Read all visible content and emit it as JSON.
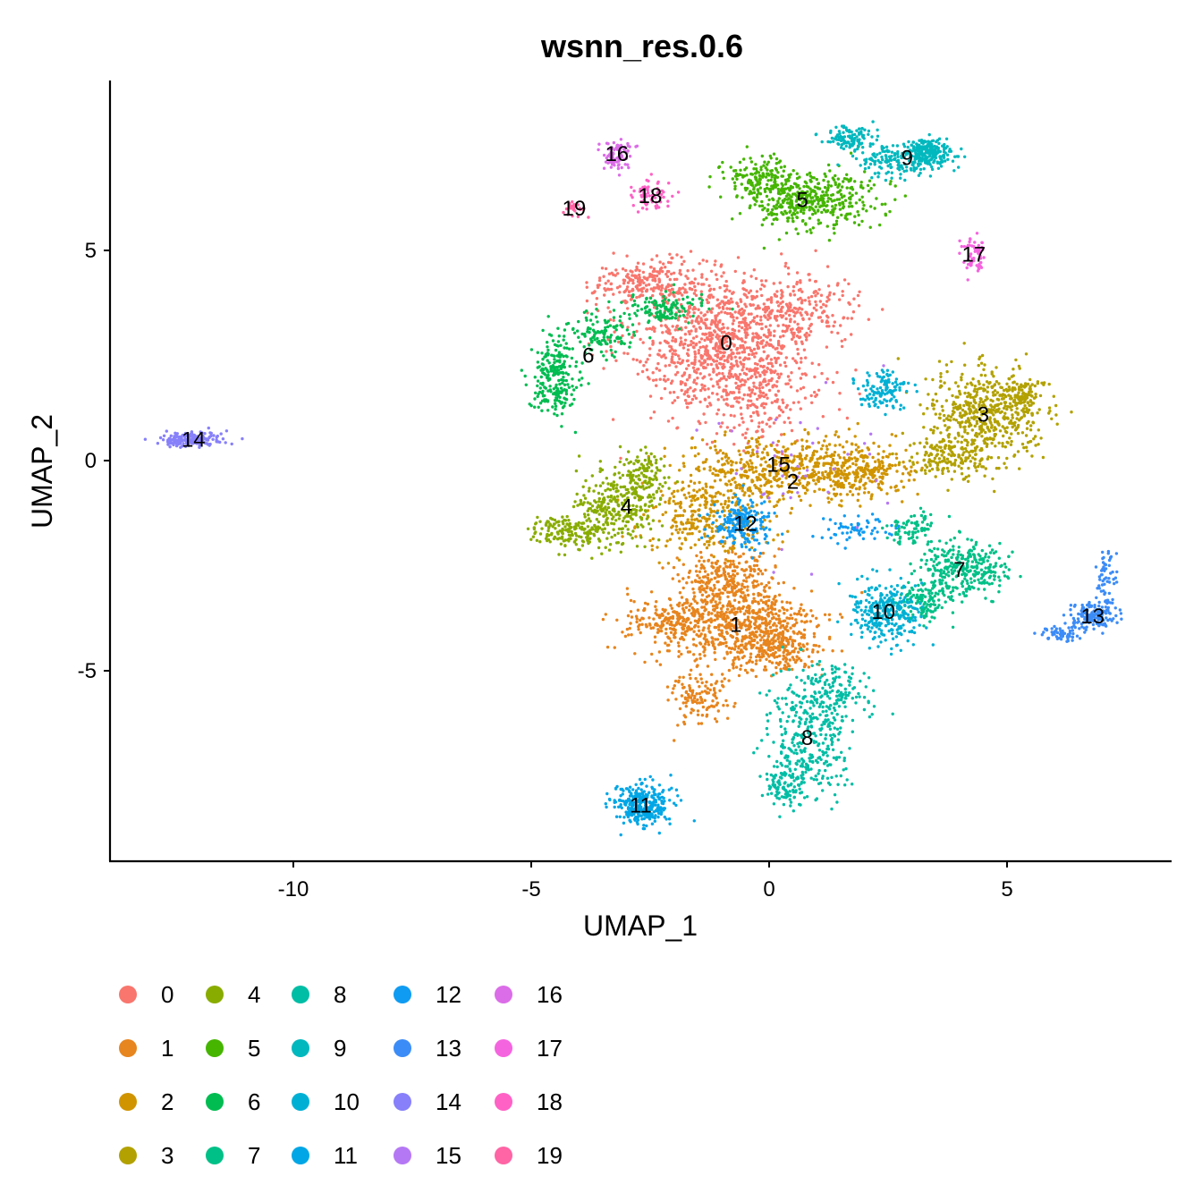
{
  "chart_data": {
    "type": "scatter",
    "title": "wsnn_res.0.6",
    "xlabel": "UMAP_1",
    "ylabel": "UMAP_2",
    "xlim": [
      -14.0,
      8.5
    ],
    "ylim": [
      -9.4,
      9.0
    ],
    "x_ticks": [
      -10,
      -5,
      0,
      5
    ],
    "x_tick_labels": [
      "-10",
      "-5",
      "0",
      "5"
    ],
    "y_ticks": [
      -5,
      0,
      5
    ],
    "y_tick_labels": [
      "-5",
      "0",
      "5"
    ],
    "grid": false,
    "legend_position": "bottom",
    "legend_columns": 5,
    "clusters": [
      {
        "name": "0",
        "color": "#F8766D",
        "label_pos": [
          -0.9,
          2.8
        ],
        "regions": [
          [
            -1.0,
            2.8,
            1.6,
            1.2,
            900
          ],
          [
            -2.5,
            4.2,
            1.0,
            0.5,
            250
          ],
          [
            0.5,
            3.6,
            1.2,
            0.7,
            250
          ],
          [
            -0.3,
            1.4,
            1.2,
            0.8,
            200
          ]
        ]
      },
      {
        "name": "1",
        "color": "#E7851E",
        "label_pos": [
          -0.7,
          -3.9
        ],
        "regions": [
          [
            -0.7,
            -3.9,
            1.4,
            0.9,
            700
          ],
          [
            0.2,
            -4.4,
            0.6,
            0.5,
            200
          ],
          [
            -2.1,
            -3.8,
            0.7,
            0.4,
            150
          ],
          [
            -1.5,
            -5.6,
            0.5,
            0.6,
            120
          ],
          [
            -0.9,
            -2.7,
            0.8,
            0.5,
            200
          ]
        ]
      },
      {
        "name": "2",
        "color": "#D09400",
        "label_pos": [
          0.5,
          -0.5
        ],
        "regions": [
          [
            0.5,
            -0.2,
            1.8,
            0.6,
            600
          ],
          [
            -1.3,
            -1.3,
            1.1,
            0.7,
            300
          ],
          [
            2.0,
            -0.3,
            0.8,
            0.4,
            150
          ]
        ]
      },
      {
        "name": "3",
        "color": "#B2A100",
        "label_pos": [
          4.5,
          1.1
        ],
        "regions": [
          [
            4.5,
            1.1,
            1.0,
            0.9,
            500
          ],
          [
            3.8,
            0.0,
            0.7,
            0.4,
            150
          ],
          [
            5.3,
            1.5,
            0.4,
            0.4,
            120
          ]
        ]
      },
      {
        "name": "4",
        "color": "#89AC00",
        "label_pos": [
          -3.0,
          -1.1
        ],
        "regions": [
          [
            -3.2,
            -1.1,
            0.7,
            0.8,
            300
          ],
          [
            -4.3,
            -1.7,
            0.6,
            0.3,
            150
          ],
          [
            -2.6,
            -0.3,
            0.4,
            0.5,
            100
          ]
        ]
      },
      {
        "name": "5",
        "color": "#45B500",
        "label_pos": [
          0.7,
          6.2
        ],
        "regions": [
          [
            0.8,
            6.2,
            1.2,
            0.6,
            450
          ],
          [
            -0.3,
            6.7,
            0.6,
            0.4,
            120
          ]
        ]
      },
      {
        "name": "6",
        "color": "#00BC51",
        "label_pos": [
          -3.8,
          2.5
        ],
        "regions": [
          [
            -4.5,
            2.0,
            0.4,
            0.8,
            220
          ],
          [
            -3.5,
            3.0,
            0.6,
            0.4,
            120
          ],
          [
            -2.3,
            3.6,
            0.7,
            0.3,
            120
          ]
        ]
      },
      {
        "name": "7",
        "color": "#00C087",
        "label_pos": [
          4.0,
          -2.6
        ],
        "regions": [
          [
            4.1,
            -2.6,
            0.8,
            0.5,
            300
          ],
          [
            3.2,
            -3.3,
            0.5,
            0.4,
            120
          ],
          [
            3.0,
            -1.6,
            0.5,
            0.3,
            80
          ]
        ]
      },
      {
        "name": "8",
        "color": "#00BDA5",
        "label_pos": [
          0.8,
          -6.6
        ],
        "regions": [
          [
            0.8,
            -6.6,
            0.7,
            1.2,
            350
          ],
          [
            1.4,
            -5.5,
            0.6,
            0.5,
            120
          ],
          [
            0.3,
            -7.8,
            0.3,
            0.4,
            80
          ]
        ]
      },
      {
        "name": "9",
        "color": "#00B8BE",
        "label_pos": [
          2.9,
          7.2
        ],
        "regions": [
          [
            3.3,
            7.3,
            0.5,
            0.3,
            250
          ],
          [
            1.7,
            7.6,
            0.4,
            0.3,
            120
          ],
          [
            2.5,
            7.1,
            0.5,
            0.3,
            100
          ]
        ]
      },
      {
        "name": "10",
        "color": "#00B0D4",
        "label_pos": [
          2.4,
          -3.6
        ],
        "regions": [
          [
            2.4,
            -3.6,
            0.6,
            0.6,
            300
          ],
          [
            2.4,
            1.7,
            0.5,
            0.4,
            120
          ]
        ]
      },
      {
        "name": "11",
        "color": "#00A6E5",
        "label_pos": [
          -2.7,
          -8.2
        ],
        "regions": [
          [
            -2.7,
            -8.2,
            0.5,
            0.4,
            300
          ]
        ]
      },
      {
        "name": "12",
        "color": "#0F9BF2",
        "label_pos": [
          -0.5,
          -1.5
        ],
        "regions": [
          [
            -0.6,
            -1.5,
            0.5,
            0.5,
            200
          ],
          [
            1.8,
            -1.6,
            0.6,
            0.3,
            60
          ]
        ]
      },
      {
        "name": "13",
        "color": "#3C8CF7",
        "label_pos": [
          6.8,
          -3.7
        ],
        "regions": [
          [
            6.8,
            -3.7,
            0.4,
            0.3,
            150
          ],
          [
            7.1,
            -2.8,
            0.2,
            0.6,
            60
          ],
          [
            6.1,
            -4.1,
            0.4,
            0.2,
            60
          ]
        ]
      },
      {
        "name": "14",
        "color": "#8780FA",
        "label_pos": [
          -12.1,
          0.5
        ],
        "regions": [
          [
            -12.2,
            0.5,
            0.5,
            0.15,
            200
          ]
        ]
      },
      {
        "name": "15",
        "color": "#B578F4",
        "label_pos": [
          0.2,
          -0.1
        ],
        "regions": [
          [
            0.2,
            -0.1,
            1.6,
            1.6,
            40
          ]
        ]
      },
      {
        "name": "16",
        "color": "#DB6DE8",
        "label_pos": [
          -3.2,
          7.3
        ],
        "regions": [
          [
            -3.2,
            7.3,
            0.3,
            0.3,
            90
          ]
        ]
      },
      {
        "name": "17",
        "color": "#F564DF",
        "label_pos": [
          4.3,
          4.9
        ],
        "regions": [
          [
            4.3,
            4.9,
            0.2,
            0.4,
            60
          ]
        ]
      },
      {
        "name": "18",
        "color": "#FF61C5",
        "label_pos": [
          -2.5,
          6.3
        ],
        "regions": [
          [
            -2.5,
            6.3,
            0.3,
            0.3,
            70
          ]
        ]
      },
      {
        "name": "19",
        "color": "#FF64A4",
        "label_pos": [
          -4.1,
          6.0
        ],
        "regions": [
          [
            -4.1,
            6.0,
            0.2,
            0.15,
            25
          ]
        ]
      }
    ]
  }
}
